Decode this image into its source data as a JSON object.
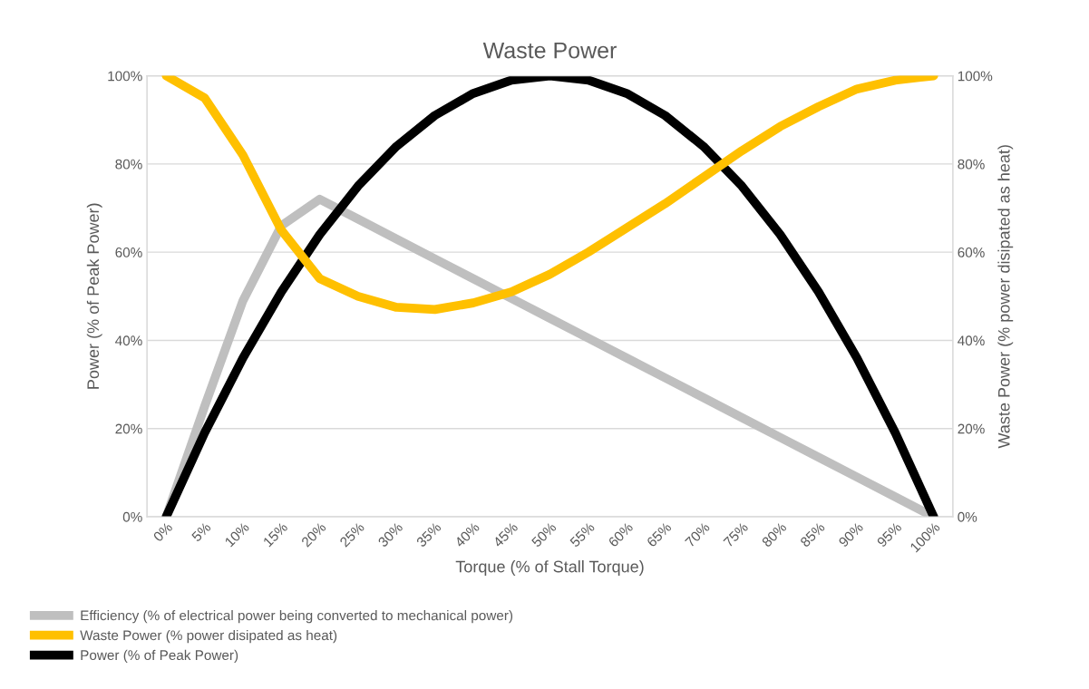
{
  "chart_data": {
    "type": "line",
    "title": "Waste Power",
    "xlabel": "Torque (% of Stall Torque)",
    "ylabel": "Power (% of Peak Power)",
    "y2label": "Waste Power (% power disipated as heat)",
    "categories": [
      "0%",
      "5%",
      "10%",
      "15%",
      "20%",
      "25%",
      "30%",
      "35%",
      "40%",
      "45%",
      "50%",
      "55%",
      "60%",
      "65%",
      "70%",
      "75%",
      "80%",
      "85%",
      "90%",
      "95%",
      "100%"
    ],
    "series": [
      {
        "name": "Efficiency (% of electrical power being converted to mechanical power)",
        "color": "#bfbfbf",
        "values": [
          0,
          25,
          49,
          66,
          72,
          67.5,
          63,
          58.5,
          54,
          49.5,
          45,
          40.5,
          36,
          31.5,
          27,
          22.5,
          18,
          13.5,
          9,
          4.5,
          0
        ]
      },
      {
        "name": "Waste Power (% power disipated as heat)",
        "color": "#ffc000",
        "axis": "y2",
        "values": [
          100,
          95,
          82,
          65,
          54,
          50,
          47.5,
          47,
          48.5,
          51,
          55,
          60,
          65.5,
          71,
          77,
          83,
          88.5,
          93,
          97,
          99,
          100
        ]
      },
      {
        "name": "Power (% of Peak Power)",
        "color": "#000000",
        "values": [
          0,
          19,
          36,
          51,
          64,
          75,
          84,
          91,
          96,
          99,
          100,
          99,
          96,
          91,
          84,
          75,
          64,
          51,
          36,
          19,
          0
        ]
      }
    ],
    "ylim": [
      0,
      100
    ],
    "yticks": [
      {
        "value": 0,
        "label": "0%"
      },
      {
        "value": 20,
        "label": "20%"
      },
      {
        "value": 40,
        "label": "40%"
      },
      {
        "value": 60,
        "label": "60%"
      },
      {
        "value": 80,
        "label": "80%"
      },
      {
        "value": 100,
        "label": "100%"
      }
    ],
    "y2lim": [
      0,
      100
    ],
    "y2ticks": [
      {
        "value": 0,
        "label": "0%"
      },
      {
        "value": 20,
        "label": "20%"
      },
      {
        "value": 40,
        "label": "40%"
      },
      {
        "value": 60,
        "label": "60%"
      },
      {
        "value": 80,
        "label": "80%"
      },
      {
        "value": 100,
        "label": "100%"
      }
    ],
    "grid": "y",
    "legend": "bottom left",
    "marker": "none",
    "line_style": "solid"
  }
}
